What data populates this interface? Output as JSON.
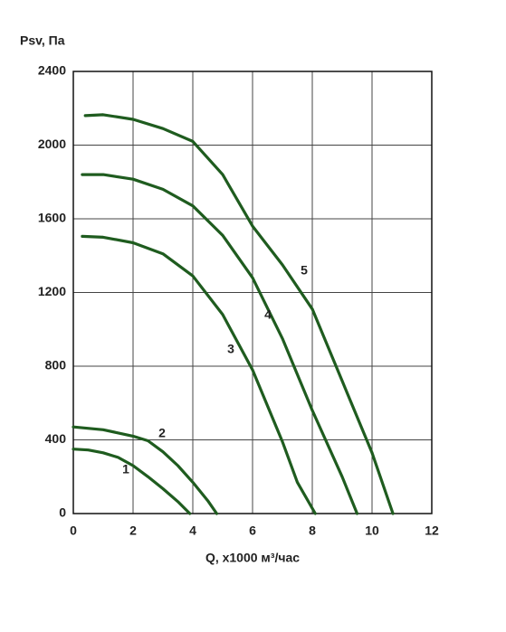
{
  "chart_data": {
    "type": "line",
    "y_label": "Psv, Па",
    "x_label": "Q, x1000 м³/час",
    "xlim": [
      0,
      12
    ],
    "xticks": [
      0,
      2,
      4,
      6,
      8,
      10,
      12
    ],
    "ylim": [
      0,
      2400
    ],
    "yticks": [
      0,
      400,
      800,
      1200,
      1600,
      2000,
      2400
    ],
    "grid": true,
    "series": [
      {
        "name": "1",
        "color": "#1f5c1f",
        "x": [
          0,
          0.5,
          1,
          1.5,
          2,
          2.5,
          3,
          3.5,
          3.9
        ],
        "values": [
          350,
          345,
          330,
          305,
          260,
          200,
          135,
          65,
          0
        ]
      },
      {
        "name": "2",
        "color": "#1f5c1f",
        "x": [
          0,
          1,
          2,
          2.5,
          3,
          3.5,
          4,
          4.5,
          4.8
        ],
        "values": [
          470,
          455,
          420,
          395,
          335,
          260,
          170,
          70,
          0
        ]
      },
      {
        "name": "3",
        "color": "#1f5c1f",
        "x": [
          0.3,
          1,
          2,
          3,
          4,
          5,
          6,
          7,
          7.5,
          8.1
        ],
        "values": [
          1505,
          1500,
          1470,
          1410,
          1290,
          1080,
          780,
          390,
          170,
          0
        ]
      },
      {
        "name": "4",
        "color": "#1f5c1f",
        "x": [
          0.3,
          1,
          2,
          3,
          4,
          5,
          6,
          7,
          8,
          9,
          9.5
        ],
        "values": [
          1840,
          1840,
          1815,
          1760,
          1670,
          1510,
          1280,
          950,
          560,
          200,
          0
        ]
      },
      {
        "name": "5",
        "color": "#1f5c1f",
        "x": [
          0.4,
          1,
          2,
          3,
          4,
          5,
          6,
          7,
          8,
          9,
          10,
          10.7
        ],
        "values": [
          2160,
          2165,
          2140,
          2090,
          2020,
          1840,
          1560,
          1350,
          1110,
          720,
          330,
          0
        ]
      }
    ]
  }
}
